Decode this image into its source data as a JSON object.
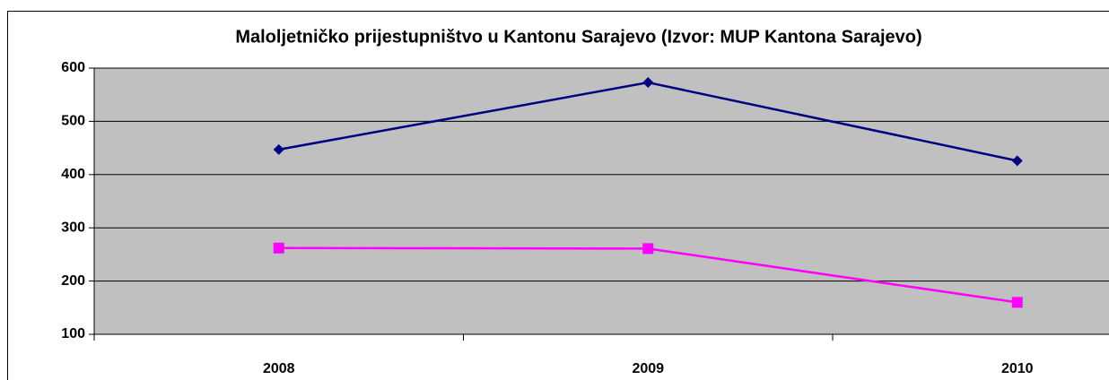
{
  "chart_data": {
    "type": "line",
    "title": "Maloljetničko prijestupništvo u Kantonu Sarajevo (Izvor: MUP Kantona Sarajevo)",
    "categories": [
      "2008",
      "2009",
      "2010"
    ],
    "series": [
      {
        "color": "#000080",
        "marker": "diamond",
        "values": [
          447,
          573,
          426
        ]
      },
      {
        "color": "#ff00ff",
        "marker": "square",
        "values": [
          262,
          261,
          160
        ]
      }
    ],
    "ylim": [
      100,
      600
    ],
    "yticks": [
      100,
      200,
      300,
      400,
      500,
      600
    ],
    "grid": true
  }
}
